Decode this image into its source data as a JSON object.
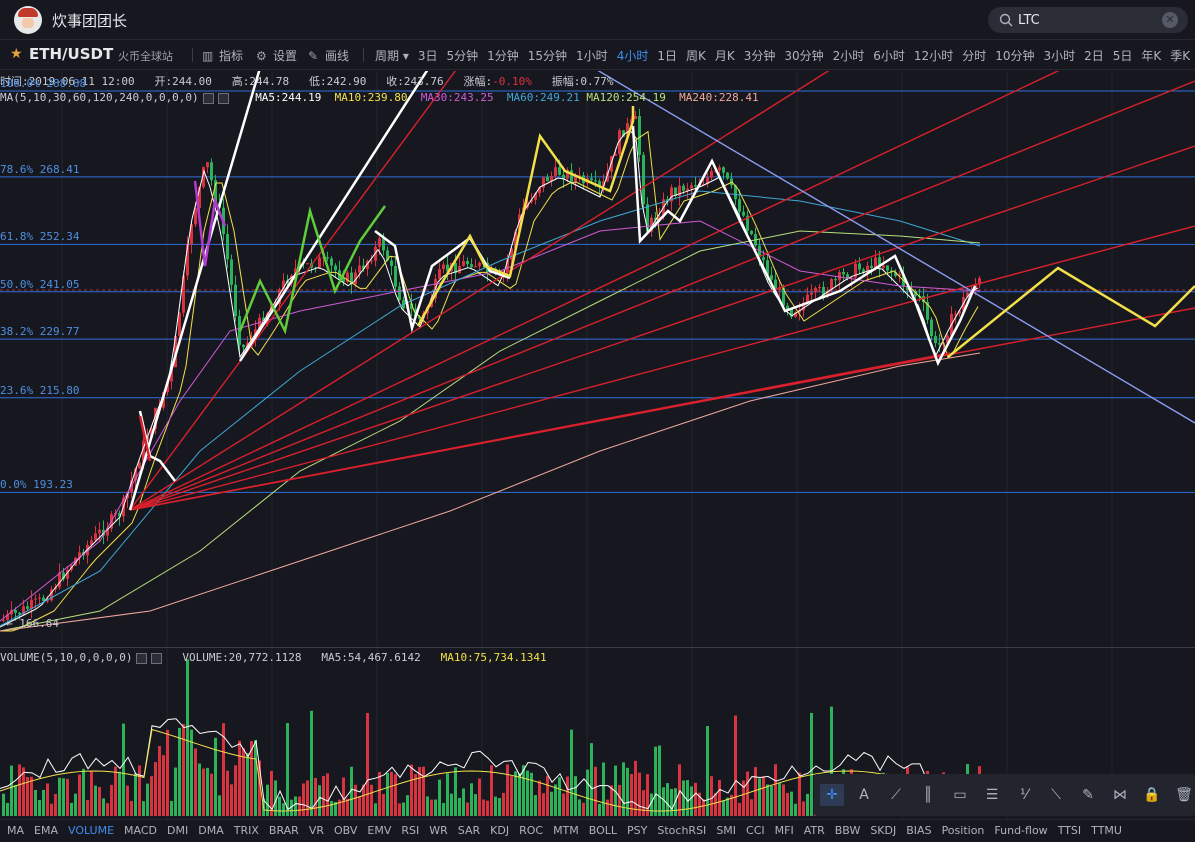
{
  "header": {
    "user_name": "炊事团团长",
    "search": {
      "value": "LTC",
      "placeholder": ""
    }
  },
  "toolbar": {
    "pair": "ETH/USDT",
    "exchange": "火币全球站",
    "indicator_label": "指标",
    "settings_label": "设置",
    "draw_label": "画线",
    "period_label": "周期",
    "periods": [
      "3日",
      "5分钟",
      "1分钟",
      "15分钟",
      "1小时",
      "4小时",
      "1日",
      "周K",
      "月K",
      "3分钟",
      "30分钟",
      "2小时",
      "6小时",
      "12小时",
      "分时",
      "10分钟",
      "3小时",
      "2日",
      "5日",
      "年K",
      "季K"
    ],
    "active_period": "4小时"
  },
  "ohlc": {
    "time_label": "时间:",
    "time": "2019-06-11 12:00",
    "open_label": "开:",
    "open": "244.00",
    "high_label": "高:",
    "high": "244.78",
    "low_label": "低:",
    "low": "242.90",
    "close_label": "收:",
    "close": "243.76",
    "change_label": "涨幅:",
    "change": "-0.10%",
    "amp_label": "振幅:",
    "amp": "0.77%"
  },
  "ma": {
    "params": "MA(5,10,30,60,120,240,0,0,0,0)",
    "ma5": "MA5:244.19",
    "ma10": "MA10:239.80",
    "ma30": "MA30:243.25",
    "ma60": "MA60:249.21",
    "ma120": "MA120:254.19",
    "ma240": "MA240:228.41"
  },
  "fib_levels": [
    {
      "label": "100.0% 288.88",
      "price": 288.88
    },
    {
      "label": "78.6% 268.41",
      "price": 268.41
    },
    {
      "label": "61.8% 252.34",
      "price": 252.34
    },
    {
      "label": "50.0% 241.05",
      "price": 241.05
    },
    {
      "label": "38.2% 229.77",
      "price": 229.77
    },
    {
      "label": "23.6% 215.80",
      "price": 215.8
    },
    {
      "label": "0.0% 193.23",
      "price": 193.23
    }
  ],
  "low_marker": "← 166.64",
  "volume": {
    "params": "VOLUME(5,10,0,0,0,0)",
    "volume": "VOLUME:20,772.1128",
    "ma5": "MA5:54,467.6142",
    "ma10": "MA10:75,734.1341"
  },
  "indicators": [
    "MA",
    "EMA",
    "VOLUME",
    "MACD",
    "DMI",
    "DMA",
    "TRIX",
    "BRAR",
    "VR",
    "OBV",
    "EMV",
    "RSI",
    "WR",
    "SAR",
    "KDJ",
    "ROC",
    "MTM",
    "BOLL",
    "PSY",
    "StochRSI",
    "SMI",
    "CCI",
    "MFI",
    "ATR",
    "BBW",
    "SKDJ",
    "BIAS",
    "Position",
    "Fund-flow",
    "TTSI",
    "TTMU"
  ],
  "active_indicator": "VOLUME",
  "draw_tools": [
    "crosshair-icon",
    "text-icon",
    "brush-line-icon",
    "parallel-lines-icon",
    "rectangle-icon",
    "fib-icon",
    "ratio-icon",
    "ruler-icon",
    "pen-icon",
    "pattern-icon",
    "lock-icon",
    "trash-icon"
  ],
  "colors": {
    "up": "#d9333f",
    "down": "#2bb35a",
    "accent": "#3d8ef0",
    "fib_line": "#2e6fd8",
    "ma5": "#ffffff",
    "ma10": "#f2e04a",
    "ma30": "#d05ad6",
    "ma60": "#3fa7d6",
    "ma120": "#b6e07c",
    "ma240": "#f0a79a"
  }
}
